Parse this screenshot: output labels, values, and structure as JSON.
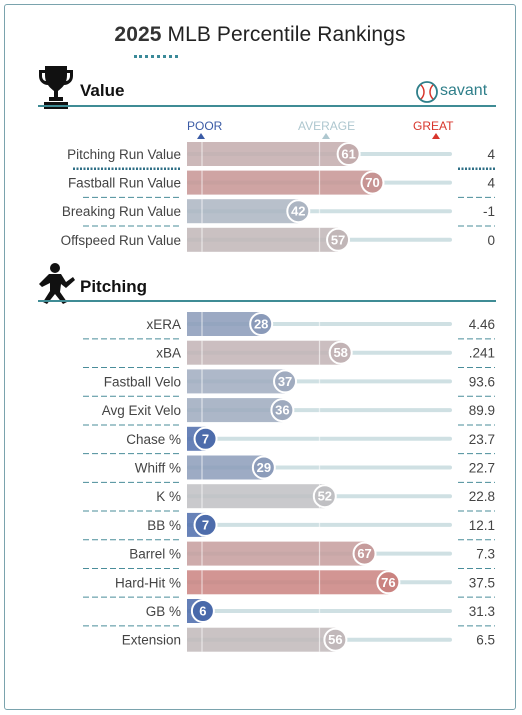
{
  "header": {
    "title_year": "2025",
    "title_rest": "MLB Percentile Rankings",
    "brand": "savant"
  },
  "scale_labels": {
    "poor": "POOR",
    "average": "AVERAGE",
    "great": "GREAT"
  },
  "colors": {
    "accent": "#3f8c95",
    "poor": "#3b5ba5",
    "average": "#aec7cf",
    "great": "#d8362c"
  },
  "chart_data": [
    {
      "type": "bar",
      "title": "Value",
      "icon": "trophy-icon",
      "xlim": [
        0,
        100
      ],
      "categories": [
        "Pitching Run Value",
        "Fastball Run Value",
        "Breaking Run Value",
        "Offspeed Run Value"
      ],
      "percentiles": [
        61,
        70,
        42,
        57
      ],
      "values": [
        "4",
        "4",
        "-1",
        "0"
      ]
    },
    {
      "type": "bar",
      "title": "Pitching",
      "icon": "pitcher-icon",
      "xlim": [
        0,
        100
      ],
      "categories": [
        "xERA",
        "xBA",
        "Fastball Velo",
        "Avg Exit Velo",
        "Chase %",
        "Whiff %",
        "K %",
        "BB %",
        "Barrel %",
        "Hard-Hit %",
        "GB %",
        "Extension"
      ],
      "percentiles": [
        28,
        58,
        37,
        36,
        7,
        29,
        52,
        7,
        67,
        76,
        6,
        56
      ],
      "values": [
        "4.46",
        ".241",
        "93.6",
        "89.9",
        "23.7",
        "22.7",
        "22.8",
        "12.1",
        "7.3",
        "37.5",
        "31.3",
        "6.5"
      ]
    }
  ]
}
